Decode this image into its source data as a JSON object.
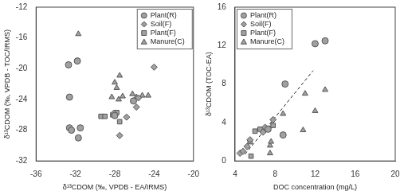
{
  "chart_data": [
    {
      "type": "scatter",
      "x_label": "δ¹³CDOM (‰, VPDB - EA/IRMS)",
      "y_label": "δ¹³CDOM (‰, VPDB - TOC/IRMS)",
      "xlim": [
        -36,
        -20
      ],
      "xticks": [
        -36,
        -32,
        -28,
        -24,
        -20
      ],
      "ylim": [
        -32,
        -12
      ],
      "yticks": [
        -32,
        -28,
        -24,
        -20,
        -16,
        -12
      ],
      "grid": false,
      "legend": "top-right",
      "series": [
        {
          "name": "Plant(R)",
          "color": "#a0a0a0",
          "marker": "circle",
          "x": [
            -32.7,
            -31.8,
            -32.6,
            -32.6,
            -32.4,
            -31.7,
            -31.5,
            -28.0,
            -26.1
          ],
          "values": [
            -19.5,
            -19.0,
            -23.7,
            -27.7,
            -28.0,
            -29.0,
            -27.7,
            -26.1,
            -24.2
          ]
        },
        {
          "name": "Soil(F)",
          "color": "#a0a0a0",
          "marker": "diamond",
          "x": [
            -25.6,
            -25.8,
            -24.0,
            -27.5,
            -26.8,
            -28.1
          ],
          "values": [
            -23.8,
            -25.0,
            -19.8,
            -28.7,
            -26.3,
            -25.8
          ]
        },
        {
          "name": "Plant(F)",
          "color": "#a0a0a0",
          "marker": "square",
          "x": [
            -29.4,
            -29.0,
            -28.2,
            -27.5,
            -27.8
          ],
          "values": [
            -26.2,
            -26.2,
            -26.0,
            -26.9,
            -25.7
          ]
        },
        {
          "name": "Manure(C)",
          "color": "#a0a0a0",
          "marker": "triangle",
          "x": [
            -31.7,
            -28.3,
            -27.6,
            -27.5,
            -28.0,
            -27.8,
            -26.2,
            -25.2,
            -24.6,
            -27.2,
            -25.8
          ],
          "values": [
            -15.5,
            -23.7,
            -24.0,
            -20.9,
            -21.8,
            -22.5,
            -23.3,
            -23.5,
            -23.5,
            -23.6,
            -23.7
          ]
        }
      ]
    },
    {
      "type": "scatter",
      "x_label": "DOC concentration (mg/L)",
      "y_label": "δ¹³CDOM (TOC-EA)",
      "xlim": [
        4,
        20
      ],
      "xticks": [
        4,
        8,
        12,
        16,
        20
      ],
      "ylim": [
        0,
        16
      ],
      "yticks": [
        0,
        4,
        8,
        12,
        16
      ],
      "grid": false,
      "legend": "top-left",
      "series": [
        {
          "name": "Plant(R)",
          "color": "#a0a0a0",
          "marker": "circle",
          "x": [
            12.0,
            13.0,
            9.0,
            8.8,
            7.3
          ],
          "values": [
            12.2,
            12.5,
            8.0,
            2.7,
            3.3
          ]
        },
        {
          "name": "Soil(F)",
          "color": "#a0a0a0",
          "marker": "diamond",
          "x": [
            4.5,
            4.8,
            5.2,
            5.5,
            7.8,
            7.0,
            6.8
          ],
          "values": [
            0.8,
            1.0,
            1.5,
            2.2,
            4.3,
            3.5,
            3.0
          ]
        },
        {
          "name": "Plant(F)",
          "color": "#a0a0a0",
          "marker": "square",
          "x": [
            5.5,
            6.0,
            6.5,
            7.8,
            7.3,
            5.6
          ],
          "values": [
            2.0,
            3.1,
            3.3,
            3.7,
            3.4,
            0.5
          ]
        },
        {
          "name": "Manure(C)",
          "color": "#a0a0a0",
          "marker": "triangle",
          "x": [
            13.0,
            11.0,
            12.0,
            8.8,
            10.8,
            7.5,
            7.5,
            7.6
          ],
          "values": [
            7.4,
            7.0,
            5.2,
            4.9,
            3.2,
            1.6,
            0.8,
            2.0
          ]
        },
        {
          "type": "line",
          "line_style": "dashed",
          "color": "#222222",
          "x": [
            5.0,
            11.8
          ],
          "values": [
            0.7,
            9.4
          ]
        }
      ]
    }
  ]
}
